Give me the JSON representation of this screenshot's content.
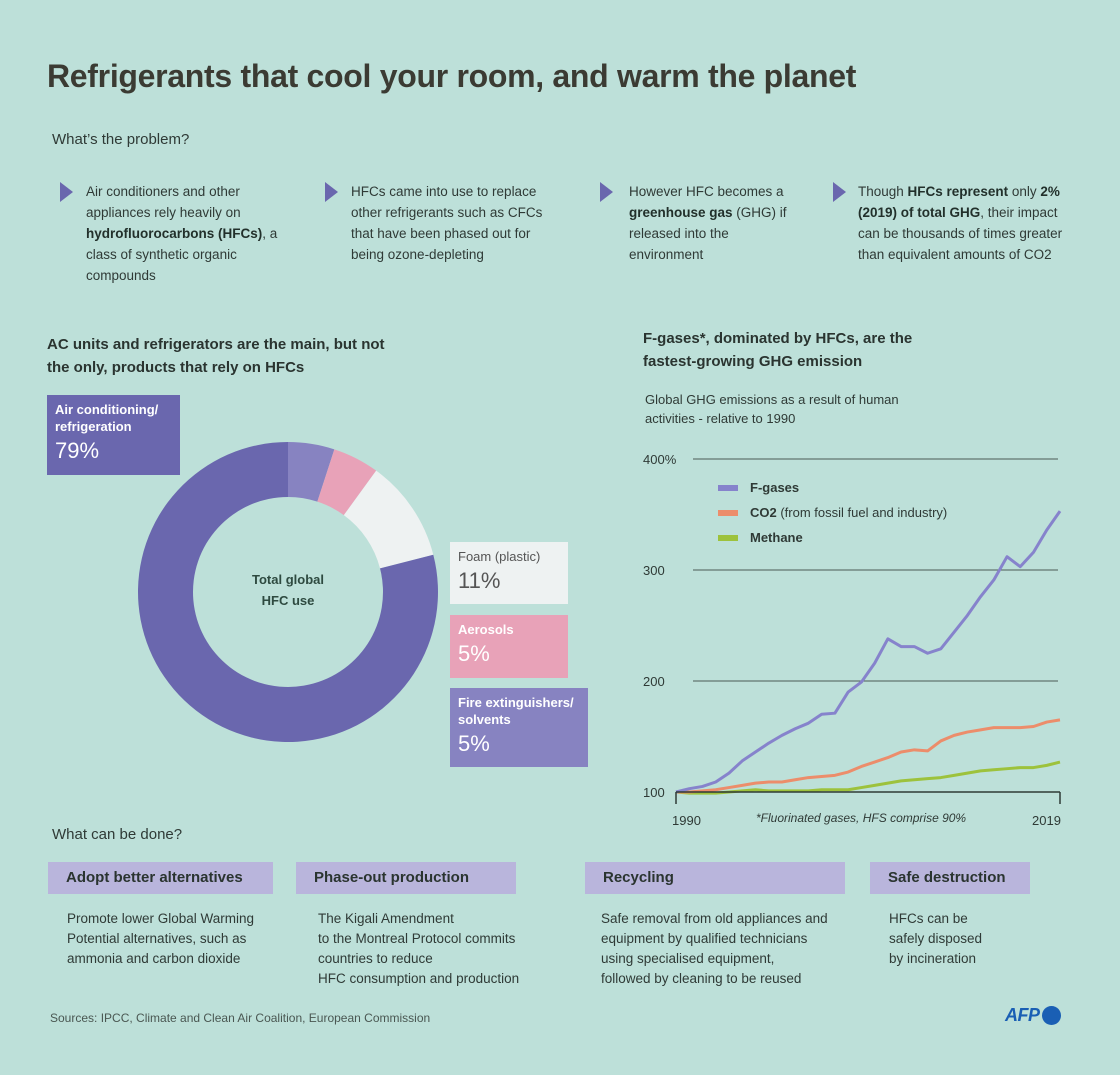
{
  "title": "Refrigerants that cool your room, and warm the planet",
  "problem": {
    "heading": "What’s the problem?",
    "bullets": [
      {
        "segments": [
          {
            "text": "Air conditioners and other appliances rely heavily on ",
            "bold": false
          },
          {
            "text": "hydrofluorocarbons (HFCs)",
            "bold": true
          },
          {
            "text": ", a class of synthetic organic compounds",
            "bold": false
          }
        ]
      },
      {
        "segments": [
          {
            "text": "HFCs came into use to replace other refrigerants such as CFCs that have been phased out for being ozone-depleting",
            "bold": false
          }
        ]
      },
      {
        "segments": [
          {
            "text": "However HFC becomes a ",
            "bold": false
          },
          {
            "text": "greenhouse gas",
            "bold": true
          },
          {
            "text": " (GHG) if released into the environment",
            "bold": false
          }
        ]
      },
      {
        "segments": [
          {
            "text": "Though ",
            "bold": false
          },
          {
            "text": "HFCs represent",
            "bold": true
          },
          {
            "text": " only ",
            "bold": false
          },
          {
            "text": "2% (2019) of total GHG",
            "bold": true
          },
          {
            "text": ", their impact can be thousands of times greater than equivalent amounts of CO2",
            "bold": false
          }
        ]
      }
    ]
  },
  "chart_data": [
    {
      "type": "pie",
      "title": "AC units and refrigerators are the main, but not the only, products that rely on HFCs",
      "center_label": "Total global HFC use",
      "slices": [
        {
          "label": "Fire extinguishers/ solvents",
          "value": 5,
          "display": "5%",
          "color": "#8783c1"
        },
        {
          "label": "Aerosols",
          "value": 5,
          "display": "5%",
          "color": "#e8a2b8"
        },
        {
          "label": "Foam (plastic)",
          "value": 11,
          "display": "11%",
          "color": "#eef2f2"
        },
        {
          "label": "Air conditioning/ refrigeration",
          "value": 79,
          "display": "79%",
          "color": "#6a67ae"
        }
      ]
    },
    {
      "type": "line",
      "title": "F-gases*, dominated by HFCs, are the fastest-growing GHG emission",
      "subtitle": "Global GHG emissions as a result of human activities - relative to 1990",
      "x": [
        1990,
        1991,
        1992,
        1993,
        1994,
        1995,
        1996,
        1997,
        1998,
        1999,
        2000,
        2001,
        2002,
        2003,
        2004,
        2005,
        2006,
        2007,
        2008,
        2009,
        2010,
        2011,
        2012,
        2013,
        2014,
        2015,
        2016,
        2017,
        2018,
        2019
      ],
      "xticks": [
        "1990",
        "2019"
      ],
      "yticks": [
        "400%",
        "300",
        "200",
        "100"
      ],
      "ytick_values": [
        400,
        300,
        200,
        100
      ],
      "ylim": [
        100,
        400
      ],
      "grid": true,
      "legend_position": "top-left",
      "series": [
        {
          "name": "F-gases",
          "name_note": "",
          "color": "#8683cc",
          "values": [
            100,
            103,
            105,
            109,
            117,
            128,
            136,
            144,
            151,
            157,
            162,
            170,
            171,
            190,
            199,
            216,
            238,
            231,
            231,
            225,
            229,
            244,
            259,
            276,
            291,
            312,
            303,
            316,
            336,
            353
          ]
        },
        {
          "name": "CO2",
          "name_note": "(from fossil fuel and industry)",
          "color": "#ec8d6b",
          "values": [
            100,
            100,
            101,
            102,
            104,
            106,
            108,
            109,
            109,
            111,
            113,
            114,
            115,
            118,
            123,
            127,
            131,
            136,
            138,
            137,
            146,
            151,
            154,
            156,
            158,
            158,
            158,
            159,
            163,
            165
          ]
        },
        {
          "name": "Methane",
          "name_note": "",
          "color": "#9dc23c",
          "values": [
            100,
            99,
            99,
            99,
            100,
            101,
            102,
            101,
            101,
            101,
            101,
            102,
            102,
            102,
            104,
            106,
            108,
            110,
            111,
            112,
            113,
            115,
            117,
            119,
            120,
            121,
            122,
            122,
            124,
            127
          ]
        }
      ],
      "footnote": "*Fluorinated gases, HFS comprise 90%"
    }
  ],
  "actions": {
    "heading": "What can be done?",
    "items": [
      {
        "title": "Adopt better alternatives",
        "body": [
          "Promote lower Global Warming",
          "Potential alternatives, such as",
          "ammonia and carbon dioxide"
        ]
      },
      {
        "title": "Phase-out production",
        "body": [
          "The Kigali Amendment",
          "to the Montreal Protocol commits",
          "countries to reduce",
          "HFC consumption and production"
        ]
      },
      {
        "title": "Recycling",
        "body": [
          "Safe removal from old appliances and",
          "equipment by qualified technicians",
          "using specialised equipment,",
          "followed by cleaning to be reused"
        ]
      },
      {
        "title": "Safe destruction",
        "body": [
          "HFCs can be",
          "safely disposed",
          "by incineration"
        ]
      }
    ]
  },
  "sources": "Sources: IPCC, Climate and Clean Air Coalition, European Commission",
  "logo": "AFP",
  "colors": {
    "background": "#bde0d9",
    "accent": "#6a67ae",
    "action_header": "#b9b5dc",
    "logo": "#1a5fb4"
  }
}
